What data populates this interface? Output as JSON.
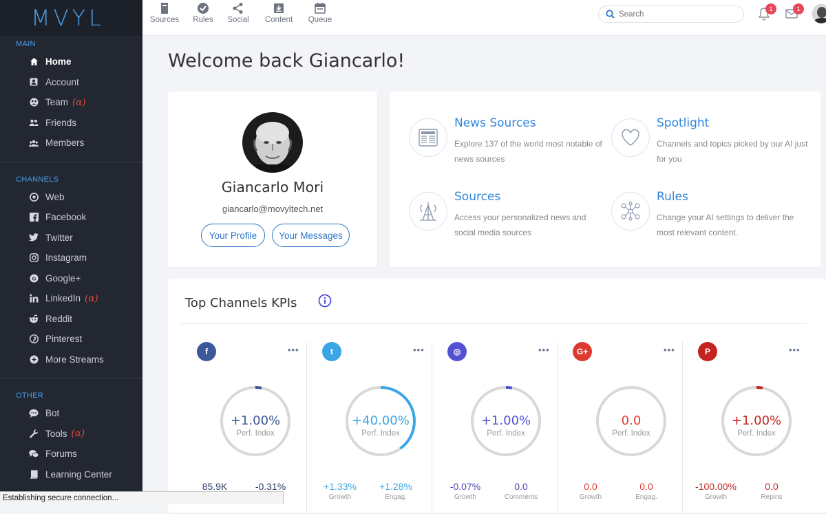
{
  "app": {
    "logo": "MVYL"
  },
  "sidebar": {
    "sections": [
      {
        "title": "MAIN",
        "items": [
          {
            "label": "Home",
            "icon": "home-icon",
            "active": true
          },
          {
            "label": "Account",
            "icon": "account-icon"
          },
          {
            "label": "Team",
            "icon": "team-icon",
            "alpha": "(α)"
          },
          {
            "label": "Friends",
            "icon": "friends-icon"
          },
          {
            "label": "Members",
            "icon": "members-icon"
          }
        ]
      },
      {
        "title": "CHANNELS",
        "items": [
          {
            "label": "Web",
            "icon": "web-icon"
          },
          {
            "label": "Facebook",
            "icon": "facebook-icon"
          },
          {
            "label": "Twitter",
            "icon": "twitter-icon"
          },
          {
            "label": "Instagram",
            "icon": "instagram-icon"
          },
          {
            "label": "Google+",
            "icon": "google-plus-icon"
          },
          {
            "label": "LinkedIn",
            "icon": "linkedin-icon",
            "alpha": "(α)"
          },
          {
            "label": "Reddit",
            "icon": "reddit-icon"
          },
          {
            "label": "Pinterest",
            "icon": "pinterest-icon"
          },
          {
            "label": "More Streams",
            "icon": "plus-circle-icon"
          }
        ]
      },
      {
        "title": "OTHER",
        "items": [
          {
            "label": "Bot",
            "icon": "bot-icon"
          },
          {
            "label": "Tools",
            "icon": "wrench-icon",
            "alpha": "(α)"
          },
          {
            "label": "Forums",
            "icon": "forums-icon"
          },
          {
            "label": "Learning Center",
            "icon": "book-icon"
          }
        ]
      }
    ]
  },
  "topnav": {
    "items": [
      {
        "label": "Sources",
        "icon": "book-icon"
      },
      {
        "label": "Rules",
        "icon": "check-circle-icon"
      },
      {
        "label": "Social",
        "icon": "share-icon"
      },
      {
        "label": "Content",
        "icon": "download-box-icon"
      },
      {
        "label": "Queue",
        "icon": "calendar-icon"
      }
    ],
    "search_placeholder": "Search",
    "notifications_count": "1",
    "messages_count": "1"
  },
  "page": {
    "welcome": "Welcome back Giancarlo!"
  },
  "profile": {
    "name": "Giancarlo Mori",
    "email": "giancarlo@movyltech.net",
    "profile_button": "Your Profile",
    "messages_button": "Your Messages"
  },
  "features": [
    {
      "title": "News Sources",
      "desc": "Explore 137 of the world most notable of news sources",
      "icon": "newspaper-icon"
    },
    {
      "title": "Spotlight",
      "desc": "Channels and topics picked by our AI just for you",
      "icon": "heart-icon"
    },
    {
      "title": "Sources",
      "desc": "Access your personalized news and social media sources",
      "icon": "antenna-icon"
    },
    {
      "title": "Rules",
      "desc": "Change your AI settings to deliver the most relevant content.",
      "icon": "network-icon"
    }
  ],
  "kpis": {
    "title": "Top Channels KPIs",
    "subtitle_label": "Perf. Index",
    "channels": [
      {
        "name": "Facebook",
        "icon": "facebook-icon",
        "glyph": "f",
        "color": "#3b5998",
        "value": "+1.00%",
        "value_color": "#3b5998",
        "progress": 0.01,
        "ring_color": "#3b5998",
        "stat1": {
          "value": "85.9K",
          "label": "",
          "color": "#2b3a67"
        },
        "stat2": {
          "value": "-0.31%",
          "label": "",
          "color": "#2b3a67"
        }
      },
      {
        "name": "Twitter",
        "icon": "twitter-icon",
        "glyph": "t",
        "color": "#3aa6e6",
        "value": "+40.00%",
        "value_color": "#3aa6e6",
        "progress": 0.4,
        "ring_color": "#3aa6e6",
        "stat1": {
          "value": "+1.33%",
          "label": "Growth",
          "color": "#3aa6e6"
        },
        "stat2": {
          "value": "+1.28%",
          "label": "Engag.",
          "color": "#3aa6e6"
        }
      },
      {
        "name": "Instagram",
        "icon": "instagram-icon",
        "glyph": "◎",
        "color": "#5251d3",
        "value": "+1.00%",
        "value_color": "#5251d3",
        "progress": 0.01,
        "ring_color": "#5251d3",
        "stat1": {
          "value": "-0.07%",
          "label": "Growth",
          "color": "#4a45b8"
        },
        "stat2": {
          "value": "0.0",
          "label": "Comments",
          "color": "#4a45b8"
        }
      },
      {
        "name": "Google+",
        "icon": "google-plus-icon",
        "glyph": "G+",
        "color": "#dd3b30",
        "value": "0.0",
        "value_color": "#dd3b30",
        "progress": 0,
        "ring_color": "#dd3b30",
        "stat1": {
          "value": "0.0",
          "label": "Growth",
          "color": "#dd3b30"
        },
        "stat2": {
          "value": "0.0",
          "label": "Engag.",
          "color": "#dd3b30"
        }
      },
      {
        "name": "Pinterest",
        "icon": "pinterest-icon",
        "glyph": "P",
        "color": "#c4231f",
        "value": "+1.00%",
        "value_color": "#c4231f",
        "progress": 0.01,
        "ring_color": "#c4231f",
        "stat1": {
          "value": "-100.00%",
          "label": "Growth",
          "color": "#c4231f"
        },
        "stat2": {
          "value": "0.0",
          "label": "Repins",
          "color": "#c4231f"
        }
      }
    ]
  },
  "statusbar": {
    "text": "Establishing secure connection..."
  }
}
